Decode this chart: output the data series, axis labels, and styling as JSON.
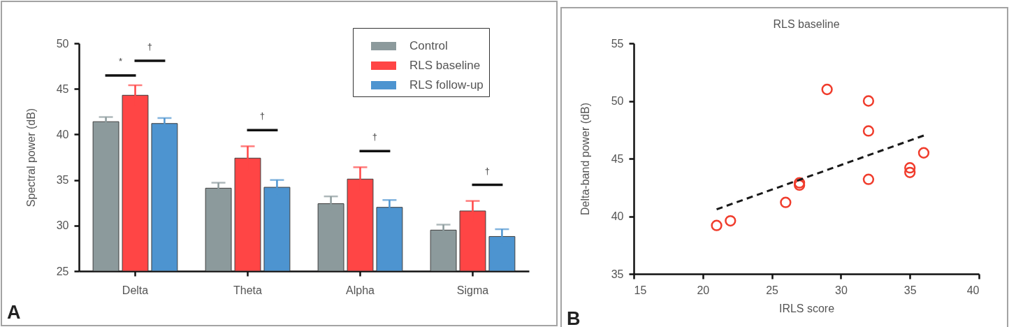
{
  "chart_data": [
    {
      "type": "bar",
      "categories": [
        "Delta",
        "Theta",
        "Alpha",
        "Sigma"
      ],
      "ylabel": "Spectral power (dB)",
      "ylim": [
        25,
        50
      ],
      "yticks": [
        25,
        30,
        35,
        40,
        45,
        50
      ],
      "grid": false,
      "legend": "top right",
      "series": [
        {
          "name": "Control",
          "color": "#8c9a9c",
          "values": [
            41.4,
            34.1,
            32.4,
            29.5
          ],
          "errors": [
            0.5,
            0.6,
            0.8,
            0.6
          ]
        },
        {
          "name": "RLS baseline",
          "color": "#ff4545",
          "values": [
            44.3,
            37.4,
            35.1,
            31.6
          ],
          "errors": [
            1.1,
            1.3,
            1.3,
            1.1
          ]
        },
        {
          "name": "RLS follow-up",
          "color": "#4d94d0",
          "values": [
            41.2,
            34.2,
            32.0,
            28.8
          ],
          "errors": [
            0.6,
            0.8,
            0.8,
            0.8
          ]
        }
      ],
      "annotations": [
        "*",
        "†",
        "†",
        "†",
        "†",
        "A"
      ]
    },
    {
      "type": "scatter",
      "title": "RLS baseline",
      "xlabel": "IRLS score",
      "ylabel": "Delta-band power (dB)",
      "xlim": [
        15,
        40
      ],
      "xticks": [
        15,
        20,
        25,
        30,
        35,
        40
      ],
      "ylim": [
        35,
        55
      ],
      "yticks": [
        35,
        40,
        45,
        50,
        55
      ],
      "grid": false,
      "marker": "circle",
      "series": [
        {
          "color": "#f03c2c",
          "x": [
            21,
            22,
            26,
            27,
            27,
            29,
            32,
            32,
            32,
            35,
            35,
            36
          ],
          "values": [
            39.2,
            39.6,
            41.2,
            42.9,
            42.7,
            51.0,
            50.0,
            47.4,
            43.2,
            44.2,
            43.8,
            45.5
          ]
        },
        {
          "type": "line",
          "line_style": "dashed",
          "marker": "none",
          "color": "#1a1a1a",
          "x": [
            21,
            36
          ],
          "values": [
            40.6,
            47.0
          ]
        }
      ],
      "annotations": [
        "B"
      ]
    }
  ]
}
